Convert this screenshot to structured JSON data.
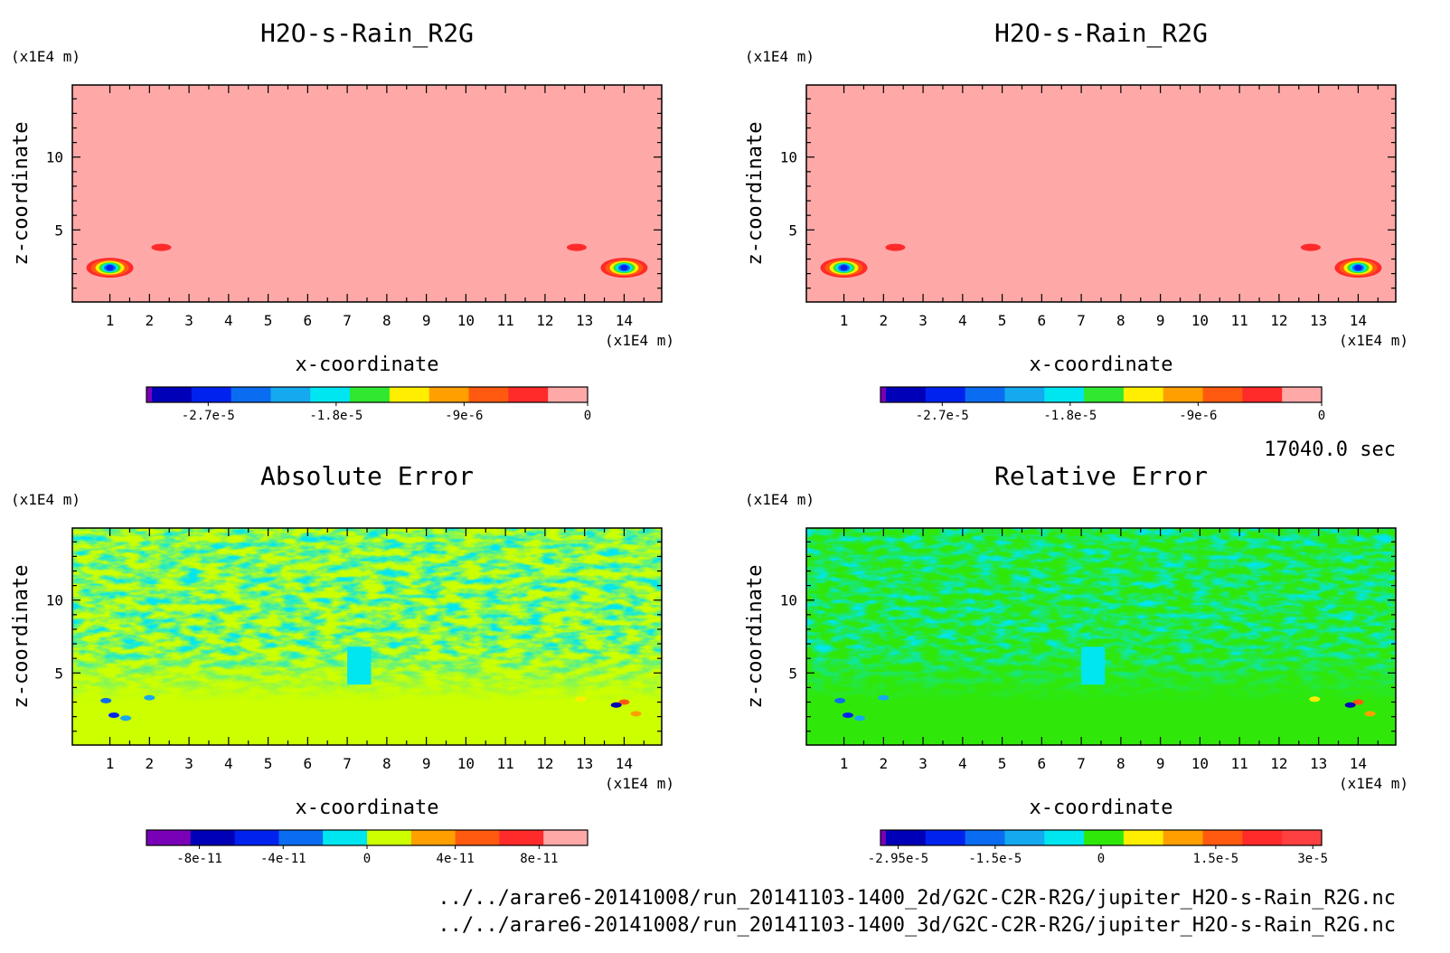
{
  "footer": {
    "timestamp": "17040.0 sec",
    "file_lines": [
      "../../arare6-20141008/run_20141103-1400_2d/G2C-C2R-R2G/jupiter_H2O-s-Rain_R2G.nc",
      "../../arare6-20141008/run_20141103-1400_3d/G2C-C2R-R2G/jupiter_H2O-s-Rain_R2G.nc"
    ]
  },
  "chart_data": [
    {
      "id": "panel-2d-field",
      "type": "heatmap",
      "title": "H2O-s-Rain_R2G",
      "xlabel": "x-coordinate",
      "ylabel": "z-coordinate",
      "x_unit": "(x1E4 m)",
      "y_unit": "(x1E4 m)",
      "xlim": [
        0.05,
        14.95
      ],
      "ylim": [
        0.05,
        14.95
      ],
      "x_ticks": [
        "1",
        "2",
        "3",
        "4",
        "5",
        "6",
        "7",
        "8",
        "9",
        "10",
        "11",
        "12",
        "13",
        "14"
      ],
      "y_ticks": [
        "5",
        "10"
      ],
      "background_color": "#ffa8a8",
      "colorbar": {
        "colors": [
          "#7a00b8",
          "#0000b8",
          "#0022ee",
          "#0a6cf0",
          "#15a9f0",
          "#00e6f0",
          "#2fe82f",
          "#ffee00",
          "#ffa000",
          "#ff5a10",
          "#ff2a2a",
          "#ffa8a8"
        ],
        "tick_labels": [
          "-2.7e-5",
          "-1.8e-5",
          "-9e-6",
          "0"
        ]
      },
      "features": [
        {
          "kind": "storm",
          "x": 1.0,
          "z": 2.4
        },
        {
          "kind": "storm",
          "x": 14.0,
          "z": 2.4
        },
        {
          "kind": "blob",
          "x": 2.3,
          "z": 3.8
        },
        {
          "kind": "blob",
          "x": 12.8,
          "z": 3.8
        }
      ]
    },
    {
      "id": "panel-3d-field",
      "type": "heatmap",
      "title": "H2O-s-Rain_R2G",
      "xlabel": "x-coordinate",
      "ylabel": "z-coordinate",
      "x_unit": "(x1E4 m)",
      "y_unit": "(x1E4 m)",
      "xlim": [
        0.05,
        14.95
      ],
      "ylim": [
        0.05,
        14.95
      ],
      "x_ticks": [
        "1",
        "2",
        "3",
        "4",
        "5",
        "6",
        "7",
        "8",
        "9",
        "10",
        "11",
        "12",
        "13",
        "14"
      ],
      "y_ticks": [
        "5",
        "10"
      ],
      "background_color": "#ffa8a8",
      "colorbar": {
        "colors": [
          "#7a00b8",
          "#0000b8",
          "#0022ee",
          "#0a6cf0",
          "#15a9f0",
          "#00e6f0",
          "#2fe82f",
          "#ffee00",
          "#ffa000",
          "#ff5a10",
          "#ff2a2a",
          "#ffa8a8"
        ],
        "tick_labels": [
          "-2.7e-5",
          "-1.8e-5",
          "-9e-6",
          "0"
        ]
      },
      "features": [
        {
          "kind": "storm",
          "x": 1.0,
          "z": 2.4
        },
        {
          "kind": "storm",
          "x": 14.0,
          "z": 2.4
        },
        {
          "kind": "blob",
          "x": 2.3,
          "z": 3.8
        },
        {
          "kind": "blob",
          "x": 12.8,
          "z": 3.8
        }
      ]
    },
    {
      "id": "panel-absolute-error",
      "type": "heatmap",
      "title": "Absolute Error",
      "xlabel": "x-coordinate",
      "ylabel": "z-coordinate",
      "x_unit": "(x1E4 m)",
      "y_unit": "(x1E4 m)",
      "xlim": [
        0.05,
        14.95
      ],
      "ylim": [
        0.05,
        14.95
      ],
      "x_ticks": [
        "1",
        "2",
        "3",
        "4",
        "5",
        "6",
        "7",
        "8",
        "9",
        "10",
        "11",
        "12",
        "13",
        "14"
      ],
      "y_ticks": [
        "5",
        "10"
      ],
      "background_color": "#ccff00",
      "pattern_color": "#00e6f0",
      "colorbar": {
        "colors": [
          "#7a00b8",
          "#0000b8",
          "#0022ee",
          "#0a6cf0",
          "#00e6f0",
          "#ccff00",
          "#ffa000",
          "#ff5a10",
          "#ff2a2a",
          "#ffa8a8"
        ],
        "tick_labels": [
          "-8e-11",
          "-4e-11",
          "0",
          "4e-11",
          "8e-11"
        ]
      }
    },
    {
      "id": "panel-relative-error",
      "type": "heatmap",
      "title": "Relative Error",
      "xlabel": "x-coordinate",
      "ylabel": "z-coordinate",
      "x_unit": "(x1E4 m)",
      "y_unit": "(x1E4 m)",
      "xlim": [
        0.05,
        14.95
      ],
      "ylim": [
        0.05,
        14.95
      ],
      "x_ticks": [
        "1",
        "2",
        "3",
        "4",
        "5",
        "6",
        "7",
        "8",
        "9",
        "10",
        "11",
        "12",
        "13",
        "14"
      ],
      "y_ticks": [
        "5",
        "10"
      ],
      "background_color": "#2fe80a",
      "pattern_color": "#00e6f0",
      "colorbar": {
        "colors": [
          "#7a00b8",
          "#0000b8",
          "#0022ee",
          "#0a6cf0",
          "#15a9f0",
          "#00e6f0",
          "#2fe80a",
          "#ffee00",
          "#ffa000",
          "#ff5a10",
          "#ff2a2a",
          "#ff4040"
        ],
        "tick_labels": [
          "-2.95e-5",
          "-1.5e-5",
          "0",
          "1.5e-5",
          "3e-5"
        ]
      }
    }
  ]
}
